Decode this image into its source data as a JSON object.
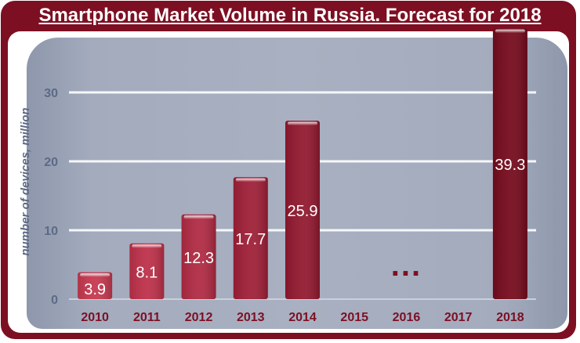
{
  "chart_data": {
    "type": "bar",
    "title": "Smartphone Market Volume in Russia. Forecast for 2018",
    "ylabel": "number of devices, million",
    "xlabel": "",
    "ylim": [
      0,
      40
    ],
    "yticks": [
      "0",
      "10",
      "20",
      "30"
    ],
    "categories": [
      "2010",
      "2011",
      "2012",
      "2013",
      "2014",
      "2015",
      "2016",
      "2017",
      "2018"
    ],
    "values": [
      3.9,
      8.1,
      12.3,
      17.7,
      25.9,
      null,
      null,
      null,
      39.3
    ],
    "data_labels": [
      "3.9",
      "8.1",
      "12.3",
      "17.7",
      "25.9",
      "",
      "",
      "",
      "39.3"
    ],
    "gap_marker": "...",
    "gap_marker_category": "2016",
    "grid": true,
    "colors": {
      "frame": "#7d0f22",
      "bars": [
        "#c6384f",
        "#bd3049",
        "#b02a43",
        "#9f1f37",
        "#92182f",
        "",
        "",
        "",
        "#750a1c"
      ],
      "axis_text": "#7d0f22",
      "ylabel_text": "#5d6a86"
    }
  }
}
